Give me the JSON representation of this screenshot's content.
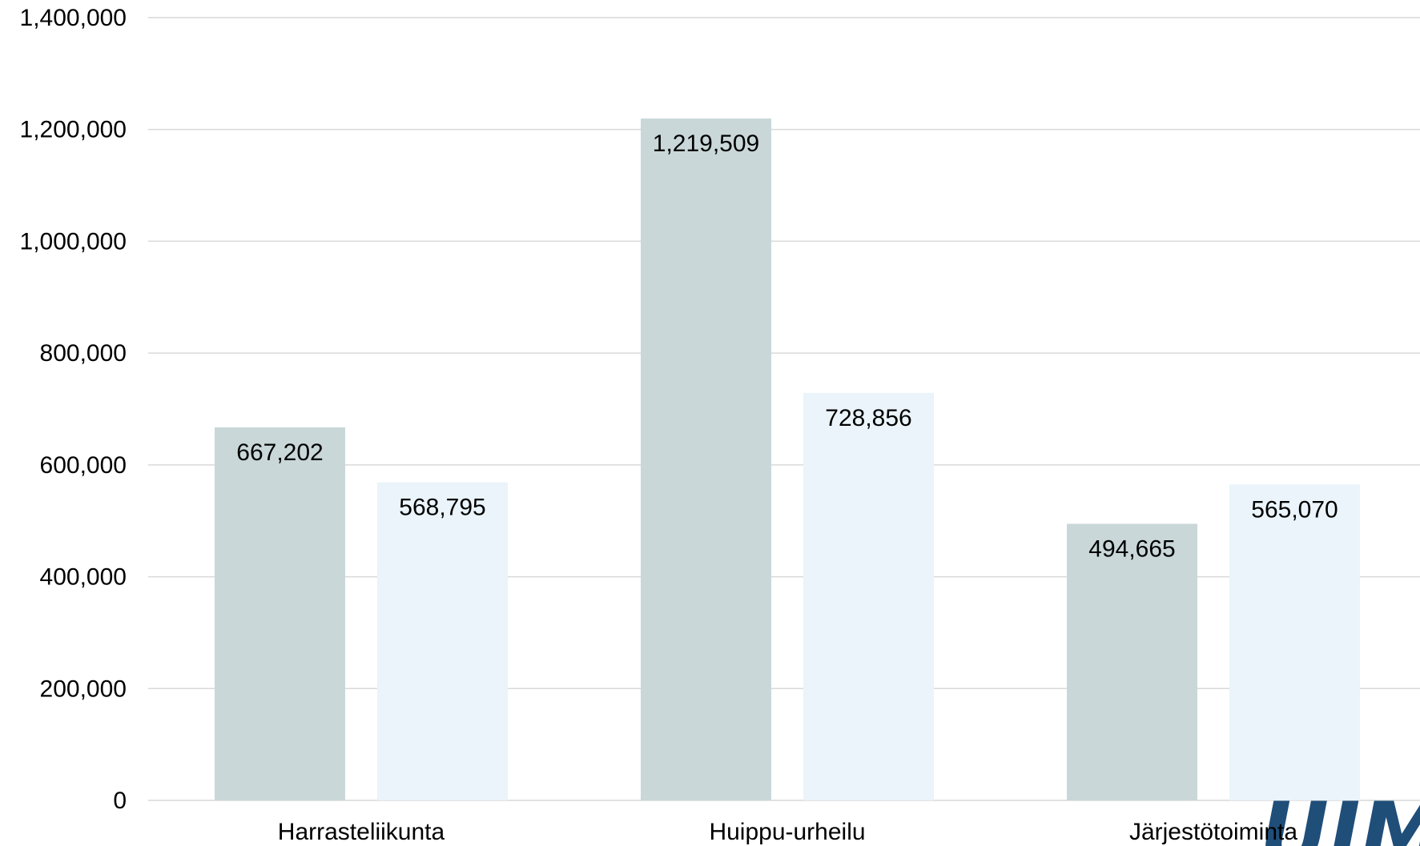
{
  "chart_data": {
    "type": "bar",
    "categories": [
      "Harrasteliikunta",
      "Huippu-urheilu",
      "Järjestötoiminta"
    ],
    "series": [
      {
        "values": [
          667202,
          1219509,
          494665
        ],
        "labels": [
          "667,202",
          "1,219,509",
          "494,665"
        ],
        "color": "#c9d7d8"
      },
      {
        "values": [
          568795,
          728856,
          565070
        ],
        "labels": [
          "568,795",
          "728,856",
          "565,070"
        ],
        "color": "#eaf4fa"
      }
    ],
    "yticks": [
      0,
      200000,
      400000,
      600000,
      800000,
      1000000,
      1200000,
      1400000
    ],
    "ytick_labels": [
      "0",
      "200,000",
      "400,000",
      "600,000",
      "800,000",
      "1,000,000",
      "1,200,000",
      "1,400,000"
    ],
    "ylim": [
      0,
      1400000
    ],
    "title": "",
    "xlabel": "",
    "ylabel": "",
    "grid": true,
    "legend": "none"
  },
  "logo": {
    "text": "UIMA",
    "color": "#1f4e79"
  }
}
